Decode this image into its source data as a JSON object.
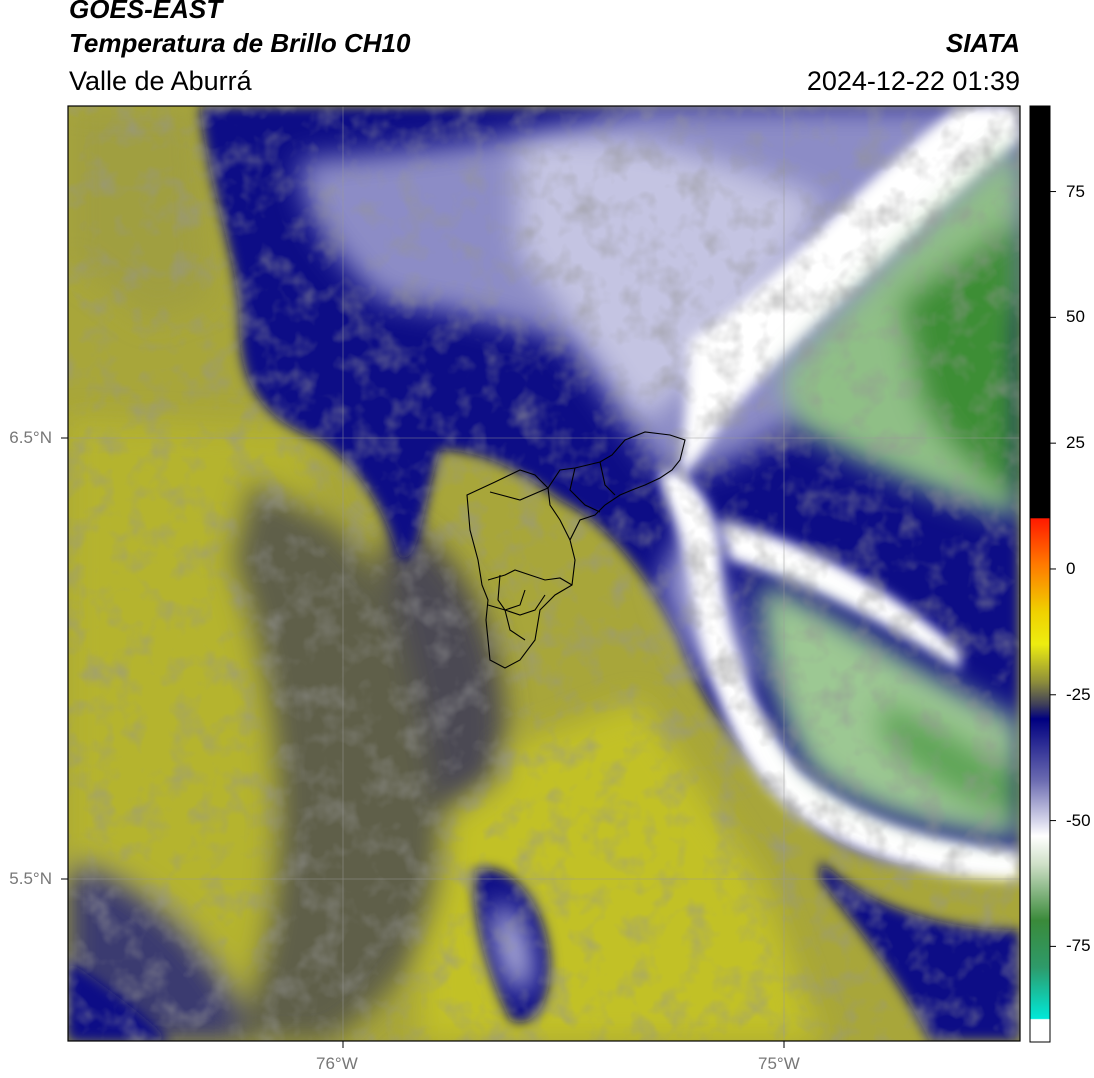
{
  "header": {
    "organization": "GOES-EAST",
    "title": "Temperatura de Brillo CH10",
    "region": "Valle de Aburrá",
    "brand": "SIATA",
    "timestamp": "2024-12-22 01:39"
  },
  "map": {
    "lat_labels": [
      "6.5°N",
      "5.5°N"
    ],
    "lon_labels": [
      "76°W",
      "75°W"
    ]
  },
  "colorbar": {
    "ticks": [
      "75",
      "50",
      "25",
      "0",
      "-25",
      "-50",
      "-75"
    ],
    "tick_values": [
      75,
      50,
      25,
      0,
      -25,
      -50,
      -75
    ],
    "range": [
      -94,
      92
    ],
    "colors": {
      "black": "#000000",
      "red": "#ff1a00",
      "orange": "#ff8c00",
      "yellow": "#f2f200",
      "olive": "#8a8a30",
      "navy": "#000080",
      "white": "#ffffff",
      "green": "#2f8a2f",
      "cyan": "#00e8d8"
    }
  }
}
